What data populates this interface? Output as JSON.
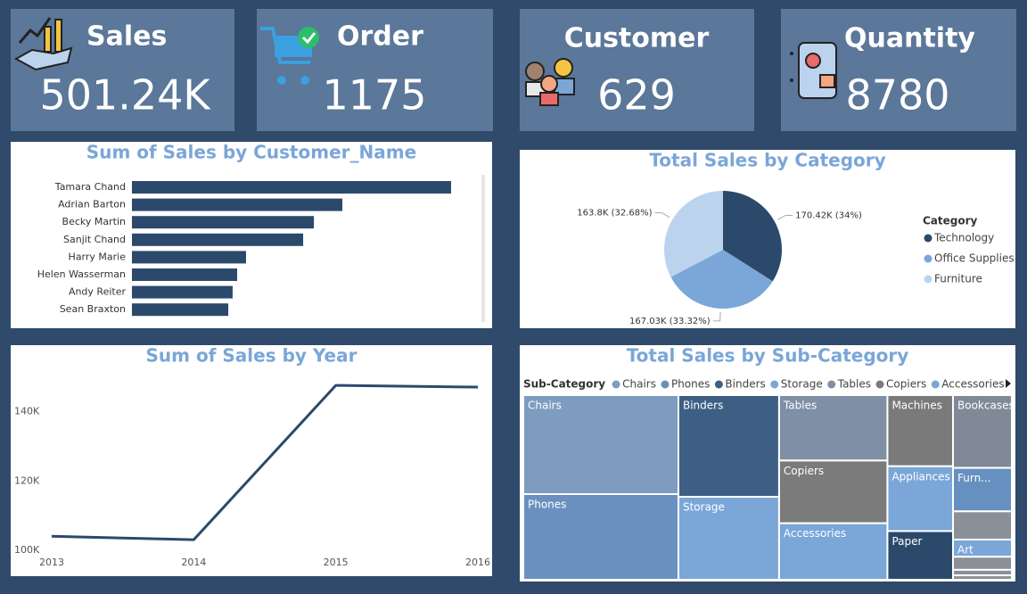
{
  "kpis": [
    {
      "label": "Sales",
      "value": 501240,
      "value_label": "501.24K"
    },
    {
      "label": "Order",
      "value": 1175
    },
    {
      "label": "Customer",
      "value": 629
    },
    {
      "label": "Quantity",
      "value": 8780
    }
  ],
  "chart_data": [
    {
      "type": "bar",
      "orientation": "horizontal",
      "title": "Sum of Sales by Customer_Name",
      "categories": [
        "Tamara Chand",
        "Adrian Barton",
        "Becky Martin",
        "Sanjit Chand",
        "Harry Marie",
        "Helen Wasserman",
        "Andy Reiter",
        "Sean Braxton"
      ],
      "values": [
        19050,
        12560,
        10860,
        10220,
        6810,
        6280,
        6010,
        5750
      ],
      "color": "#2b4a6b"
    },
    {
      "type": "pie",
      "title": "Total Sales by Category",
      "legend_title": "Category",
      "legend_position": "right",
      "categories": [
        "Technology",
        "Office Supplies",
        "Furniture"
      ],
      "values": [
        170420,
        167030,
        163800
      ],
      "value_labels": [
        "170.42K (34%)",
        "167.03K (33.32%)",
        "163.8K (32.68%)"
      ],
      "colors": [
        "#2b4a6b",
        "#7aa6d8",
        "#bcd3ee"
      ]
    },
    {
      "type": "line",
      "title": "Sum of Sales by Year",
      "color": "#2b4a6b",
      "x": [
        2013,
        2014,
        2015,
        2016
      ],
      "values": [
        104100,
        103100,
        147600,
        147100
      ],
      "xlim": [
        2013,
        2016
      ],
      "xticks": [
        2013,
        2014,
        2015,
        2016
      ],
      "ylim": [
        98000,
        152000
      ],
      "yticks": [
        {
          "value": 100000,
          "label": "100K"
        },
        {
          "value": 120000,
          "label": "120K"
        },
        {
          "value": 140000,
          "label": "140K"
        }
      ],
      "grid": false
    },
    {
      "type": "treemap",
      "title": "Total Sales by Sub-Category",
      "legend_title": "Sub-Category",
      "legend_position": "top",
      "categories": [
        "Chairs",
        "Phones",
        "Binders",
        "Storage",
        "Tables",
        "Copiers",
        "Accessories",
        "Machines",
        "Bookcases",
        "Appliances",
        "Furn...",
        "Paper",
        null,
        "Art",
        null,
        null,
        null
      ],
      "values": [
        18981,
        16416,
        12654,
        10323,
        8760,
        8400,
        7560,
        5767,
        5293,
        5256,
        3160,
        3942,
        2054,
        1250,
        950,
        400,
        320
      ],
      "colors": [
        "#7d9cc0",
        "#6a90c0",
        "#3e5f84",
        "#7aa6d8",
        "#7f8fa5",
        "#7b7b7b",
        "#7aa6d8",
        "#7a7a7a",
        "#808a96",
        "#7aa6d8",
        "#6690c0",
        "#2b4a6b",
        "#8a8f98",
        "#7aa6d8",
        "#8a8f98",
        "#8a8f98",
        "#8a8f98"
      ]
    }
  ]
}
